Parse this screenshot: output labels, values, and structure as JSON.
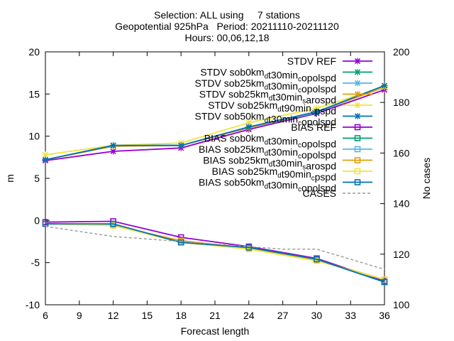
{
  "title_lines": [
    "Selection: ALL using     7 stations",
    "Geopotential 925hPa   Period: 20211110-20211120",
    "Hours: 00,06,12,18"
  ],
  "chart_data": {
    "type": "line",
    "xlabel": "Forecast length",
    "ylabel": "m",
    "y2label": "No cases",
    "xlim": [
      6,
      36
    ],
    "ylim": [
      -10,
      20
    ],
    "y2lim": [
      100,
      200
    ],
    "xticks": [
      6,
      9,
      12,
      15,
      18,
      21,
      24,
      27,
      30,
      33,
      36
    ],
    "yticks": [
      -10,
      -5,
      0,
      5,
      10,
      15,
      20
    ],
    "y2ticks": [
      100,
      120,
      140,
      160,
      180,
      200
    ],
    "x": [
      6,
      12,
      18,
      24,
      30,
      36
    ],
    "legend_position": "top-right",
    "series": [
      {
        "name": "STDV REF",
        "key": "STDV REF",
        "color": "#9400d3",
        "marker": "x",
        "axis": "y",
        "values": [
          7.1,
          8.2,
          8.6,
          10.8,
          12.7,
          15.5
        ]
      },
      {
        "name": "STDV sob0kmdt30mincopolspd",
        "key": "STDV sob0km_{d}t30min_{c}opolspd",
        "color": "#009e73",
        "marker": "x",
        "axis": "y",
        "values": [
          7.2,
          8.9,
          8.9,
          11.0,
          12.8,
          15.9
        ]
      },
      {
        "name": "STDV sob25kmdt30mincopolspd",
        "key": "STDV sob25km_{d}t30min_{c}opolspd",
        "color": "#56b4e9",
        "marker": "x",
        "axis": "y",
        "values": [
          7.2,
          8.9,
          8.9,
          11.0,
          12.8,
          15.9
        ]
      },
      {
        "name": "STDV sob25kmdt30minsarospd",
        "key": "STDV sob25km_{d}t30min_{s}arospd",
        "color": "#e69f00",
        "marker": "x",
        "axis": "y",
        "values": [
          7.2,
          8.8,
          8.9,
          11.0,
          12.9,
          15.8
        ]
      },
      {
        "name": "STDV sob25kmdt90mincpspd",
        "key": "STDV sob25km_{d}t90min_{c}pspd",
        "color": "#f0e442",
        "marker": "x",
        "axis": "y",
        "values": [
          7.8,
          8.9,
          9.2,
          11.6,
          13.3,
          15.9
        ]
      },
      {
        "name": "STDV sob50kmdt30mincopolspd",
        "key": "STDV sob50km_{d}t30min_{c}opolspd",
        "color": "#0072b2",
        "marker": "x",
        "axis": "y",
        "values": [
          7.2,
          8.9,
          8.9,
          11.1,
          12.9,
          16.0
        ]
      },
      {
        "name": "BIAS REF",
        "key": "BIAS REF",
        "color": "#9400d3",
        "marker": "s",
        "axis": "y",
        "values": [
          -0.2,
          -0.1,
          -2.0,
          -3.1,
          -4.5,
          -7.2
        ]
      },
      {
        "name": "BIAS sob0kmdt30mincopolspd",
        "key": "BIAS sob0km_{d}t30min_{c}opolspd",
        "color": "#009e73",
        "marker": "s",
        "axis": "y",
        "values": [
          -0.4,
          -0.5,
          -2.6,
          -3.2,
          -4.6,
          -7.3
        ]
      },
      {
        "name": "BIAS sob25kmdt30mincopolspd",
        "key": "BIAS sob25km_{d}t30min_{c}opolspd",
        "color": "#56b4e9",
        "marker": "s",
        "axis": "y",
        "values": [
          -0.4,
          -0.5,
          -2.6,
          -3.2,
          -4.6,
          -7.3
        ]
      },
      {
        "name": "BIAS sob25kmdt30minsarospd",
        "key": "BIAS sob25km_{d}t30min_{s}arospd",
        "color": "#e69f00",
        "marker": "s",
        "axis": "y",
        "values": [
          -0.4,
          -0.6,
          -2.4,
          -3.3,
          -4.7,
          -7.0
        ]
      },
      {
        "name": "BIAS sob25kmdt90mincpspd",
        "key": "BIAS sob25km_{d}t90min_{c}pspd",
        "color": "#f0e442",
        "marker": "s",
        "axis": "y",
        "values": [
          -0.4,
          -0.6,
          -2.6,
          -3.4,
          -4.8,
          -7.0
        ]
      },
      {
        "name": "BIAS sob50kmdt30mincopolspd",
        "key": "BIAS sob50km_{d}t30min_{c}opolspd",
        "color": "#0072b2",
        "marker": "s",
        "axis": "y",
        "values": [
          -0.4,
          -0.4,
          -2.6,
          -3.2,
          -4.6,
          -7.3
        ]
      },
      {
        "name": "CASES",
        "key": "CASES",
        "color": "#999999",
        "marker": "none",
        "dash": true,
        "axis": "y2",
        "x": [
          6,
          9,
          12,
          15,
          18,
          21,
          24,
          27,
          30,
          33,
          36
        ],
        "values": [
          131,
          129,
          127,
          126,
          125,
          124,
          123,
          122,
          122,
          118,
          114
        ]
      }
    ]
  }
}
